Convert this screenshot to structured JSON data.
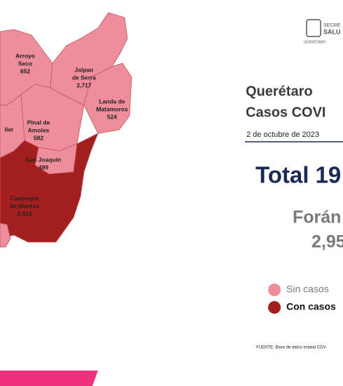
{
  "logo": {
    "line1": "SECRE",
    "line2": "SALU",
    "line3": "QUERÉTARO"
  },
  "map": {
    "municipalities": [
      {
        "name_lines": [
          "Arroyo",
          "Seco"
        ],
        "cases": "652"
      },
      {
        "name_lines": [
          "Jalpan",
          "de Serra"
        ],
        "cases": "2,717"
      },
      {
        "name_lines": [
          "Landa de",
          "Matamoros"
        ],
        "cases": "524"
      },
      {
        "name_lines": [
          "Pinal de",
          "Amoles"
        ],
        "cases": "582"
      },
      {
        "name_lines": [
          "ller"
        ]
      },
      {
        "name_lines": [
          "San Joaquín"
        ],
        "cases": "499"
      },
      {
        "name_lines": [
          "Cadereyta",
          "de Montes"
        ],
        "cases": "2,919"
      }
    ]
  },
  "title": {
    "line1": "Querétaro",
    "line2": "Casos COVI"
  },
  "date": "2 de octubre de 2023",
  "total": "Total 19",
  "foraneos": {
    "label": "Forán",
    "value": "2,95"
  },
  "legend": {
    "items": [
      {
        "label": "Sin casos",
        "color": "#ee8d9b"
      },
      {
        "label": "Con casos",
        "color": "#a3201f"
      }
    ]
  },
  "source": "FUENTE: Base de datos estatal COV"
}
